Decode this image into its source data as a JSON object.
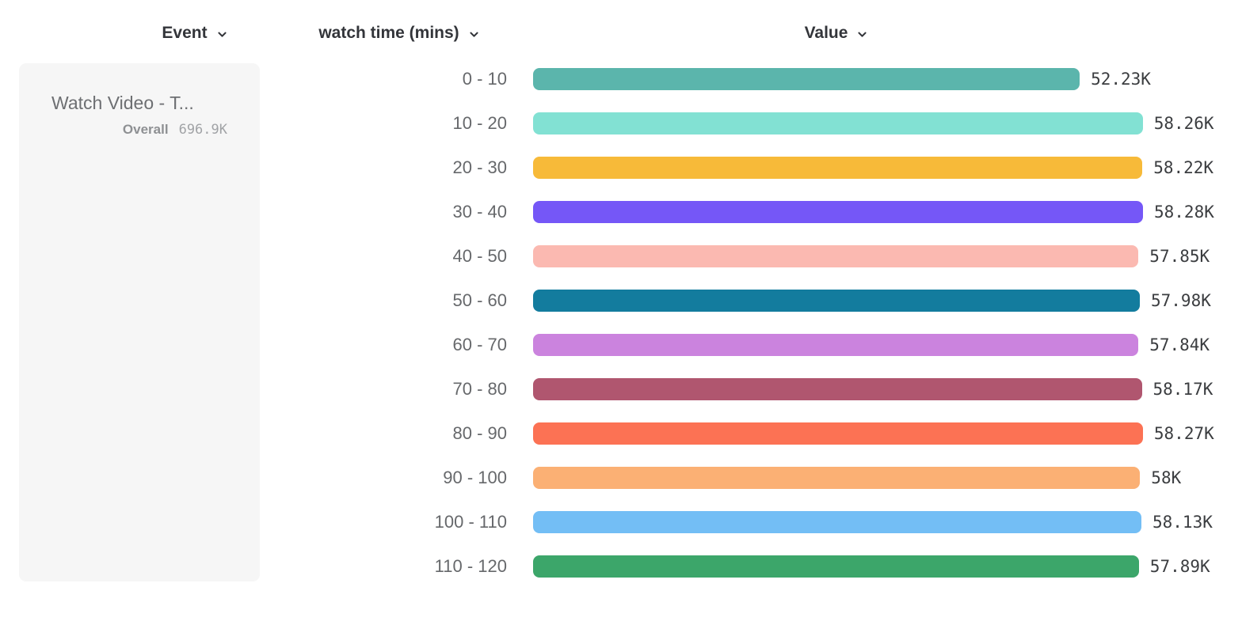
{
  "header": {
    "columns": [
      {
        "id": "event",
        "label": "Event"
      },
      {
        "id": "watch_time",
        "label": "watch time (mins)"
      },
      {
        "id": "value",
        "label": "Value"
      }
    ]
  },
  "event_card": {
    "title": "Watch Video - T...",
    "overall_label": "Overall",
    "overall_value": "696.9K"
  },
  "chart_data": {
    "type": "bar",
    "orientation": "horizontal",
    "series_name": "Watch Video - T...",
    "group_by": "watch time (mins)",
    "overall": {
      "label": "Overall",
      "value": "696.9K"
    },
    "categories": [
      "0 - 10",
      "10 - 20",
      "20 - 30",
      "30 - 40",
      "40 - 50",
      "50 - 60",
      "60 - 70",
      "70 - 80",
      "80 - 90",
      "90 - 100",
      "100 - 110",
      "110 - 120"
    ],
    "values": [
      52230,
      58260,
      58220,
      58280,
      57850,
      57980,
      57840,
      58170,
      58270,
      58000,
      58130,
      57890
    ],
    "value_labels": [
      "52.23K",
      "58.26K",
      "58.22K",
      "58.28K",
      "57.85K",
      "57.98K",
      "57.84K",
      "58.17K",
      "58.27K",
      "58K",
      "58.13K",
      "57.89K"
    ],
    "colors": [
      "#5bb5ac",
      "#82e1d3",
      "#f7ba39",
      "#7557f7",
      "#fbb9b1",
      "#137c9e",
      "#cb83de",
      "#b0566f",
      "#fc7254",
      "#fbb074",
      "#73bef5",
      "#3ca66a"
    ],
    "axis_max": 58280,
    "grid": false,
    "legend_position": "left"
  },
  "ui_colors": {
    "card_background": "#f6f6f6",
    "header_text": "#33353a",
    "label_text": "#66686b",
    "value_text": "#3b3d40"
  }
}
